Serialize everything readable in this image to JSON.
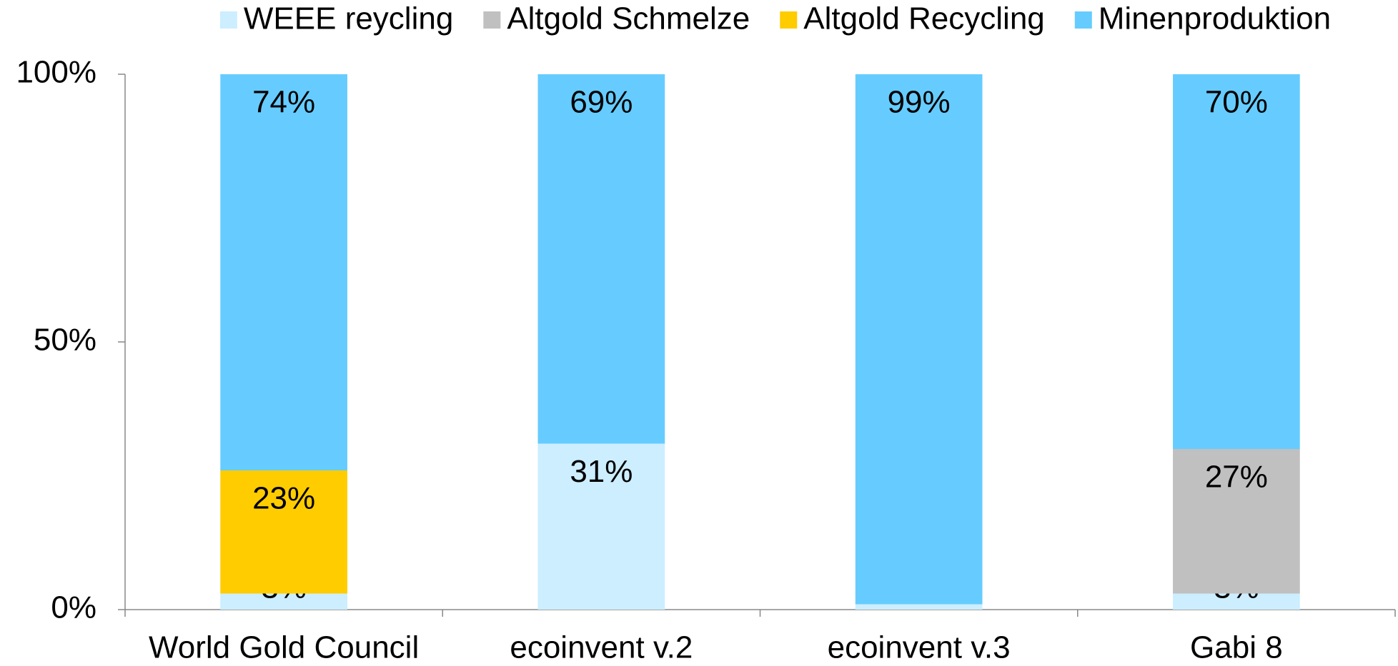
{
  "chart_data": {
    "type": "stacked_bar",
    "categories": [
      "World Gold Council",
      "ecoinvent v.2",
      "ecoinvent v.3",
      "Gabi 8"
    ],
    "series": [
      {
        "name": "WEEE reycling",
        "color": "#cceeff",
        "values": [
          3,
          31,
          1,
          3
        ],
        "value_labels": [
          "3%",
          "31%",
          "1%",
          "3%"
        ]
      },
      {
        "name": "Altgold Schmelze",
        "color": "#c0c0c0",
        "values": [
          null,
          null,
          null,
          27
        ],
        "value_labels": [
          null,
          null,
          null,
          "27%"
        ]
      },
      {
        "name": "Altgold Recycling",
        "color": "#ffcc00",
        "values": [
          23,
          null,
          null,
          null
        ],
        "value_labels": [
          "23%",
          null,
          null,
          null
        ]
      },
      {
        "name": "Minenproduktion",
        "color": "#66ccff",
        "values": [
          74,
          69,
          99,
          70
        ],
        "value_labels": [
          "74%",
          "69%",
          "99%",
          "70%"
        ]
      }
    ],
    "ylim": [
      0,
      100
    ],
    "yticks": [
      {
        "value": 0,
        "label": "0%"
      },
      {
        "value": 50,
        "label": "50%"
      },
      {
        "value": 100,
        "label": "100%"
      }
    ],
    "legend": "top"
  }
}
